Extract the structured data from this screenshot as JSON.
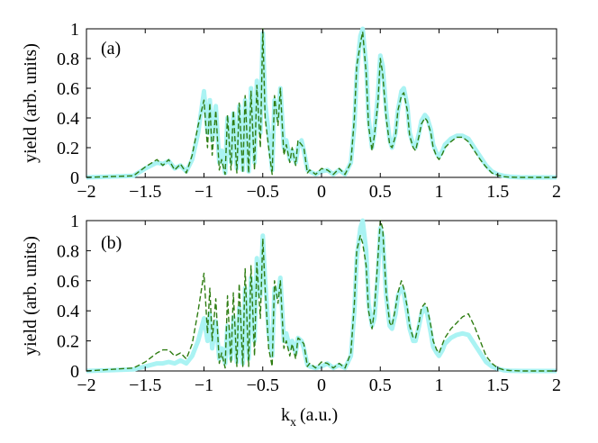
{
  "figure": {
    "xlabel": "k",
    "xlabel_sub": "x",
    "xlabel_units": "(a.u.)"
  },
  "colors": {
    "thick_curve": "#aaf3f3",
    "dashed_curve": "#2f7d12",
    "axes": "#000000"
  },
  "chart_data": [
    {
      "type": "line",
      "panel_label": "(a)",
      "ylabel": "yield (arb. units)",
      "xlim": [
        -2,
        2
      ],
      "ylim": [
        0,
        1
      ],
      "xticks": [
        -2,
        -1.5,
        -1,
        -0.5,
        0,
        0.5,
        1,
        1.5,
        2
      ],
      "xtick_labels": [
        "−2",
        "−1.5",
        "−1",
        "−0.5",
        "0",
        "0.5",
        "1",
        "1.5",
        "2"
      ],
      "yticks": [
        0,
        0.2,
        0.4,
        0.6,
        0.8,
        1
      ],
      "ytick_labels": [
        "0",
        "0.2",
        "0.4",
        "0.6",
        "0.8",
        "1"
      ],
      "series": [
        {
          "name": "thick light curve",
          "style": "solid-thick",
          "x": [
            -2,
            -1.6,
            -1.5,
            -1.4,
            -1.35,
            -1.3,
            -1.25,
            -1.2,
            -1.15,
            -1.1,
            -1.05,
            -1.0,
            -0.97,
            -0.95,
            -0.93,
            -0.9,
            -0.87,
            -0.85,
            -0.82,
            -0.8,
            -0.77,
            -0.75,
            -0.72,
            -0.7,
            -0.67,
            -0.65,
            -0.62,
            -0.6,
            -0.57,
            -0.55,
            -0.52,
            -0.5,
            -0.48,
            -0.45,
            -0.42,
            -0.4,
            -0.37,
            -0.35,
            -0.32,
            -0.3,
            -0.27,
            -0.25,
            -0.22,
            -0.2,
            -0.17,
            -0.15,
            -0.12,
            -0.1,
            -0.05,
            0,
            0.05,
            0.1,
            0.15,
            0.2,
            0.25,
            0.28,
            0.3,
            0.33,
            0.35,
            0.38,
            0.4,
            0.43,
            0.45,
            0.48,
            0.5,
            0.52,
            0.55,
            0.58,
            0.6,
            0.63,
            0.65,
            0.68,
            0.7,
            0.73,
            0.75,
            0.78,
            0.8,
            0.83,
            0.85,
            0.88,
            0.9,
            0.93,
            0.95,
            0.98,
            1.0,
            1.03,
            1.05,
            1.1,
            1.15,
            1.2,
            1.25,
            1.3,
            1.35,
            1.4,
            1.45,
            1.5,
            1.55,
            1.6,
            1.7,
            1.8,
            2
          ],
          "y": [
            0,
            0.01,
            0.06,
            0.1,
            0.09,
            0.11,
            0.06,
            0.08,
            0.04,
            0.12,
            0.3,
            0.58,
            0.3,
            0.52,
            0.25,
            0.48,
            0.1,
            0.18,
            0.03,
            0.4,
            0.1,
            0.43,
            0.06,
            0.48,
            0.05,
            0.52,
            0.04,
            0.6,
            0.1,
            0.65,
            0.3,
            0.97,
            0.5,
            0.3,
            0.05,
            0.52,
            0.4,
            0.6,
            0.2,
            0.25,
            0.12,
            0.18,
            0.1,
            0.2,
            0.25,
            0.18,
            0.05,
            0.04,
            0.02,
            0.04,
            0.05,
            0.02,
            0.05,
            0.02,
            0.1,
            0.35,
            0.7,
            0.95,
            1.0,
            0.75,
            0.4,
            0.2,
            0.3,
            0.55,
            0.82,
            0.75,
            0.45,
            0.25,
            0.2,
            0.3,
            0.45,
            0.58,
            0.6,
            0.48,
            0.3,
            0.22,
            0.2,
            0.3,
            0.38,
            0.42,
            0.4,
            0.32,
            0.22,
            0.16,
            0.14,
            0.18,
            0.22,
            0.26,
            0.28,
            0.28,
            0.26,
            0.2,
            0.14,
            0.08,
            0.04,
            0.02,
            0.01,
            0.005,
            0,
            0,
            0
          ]
        },
        {
          "name": "dashed curve",
          "style": "dashed",
          "x": [
            -2,
            -1.6,
            -1.5,
            -1.4,
            -1.35,
            -1.3,
            -1.25,
            -1.2,
            -1.15,
            -1.1,
            -1.05,
            -1.0,
            -0.97,
            -0.95,
            -0.93,
            -0.9,
            -0.87,
            -0.85,
            -0.82,
            -0.8,
            -0.77,
            -0.75,
            -0.72,
            -0.7,
            -0.67,
            -0.65,
            -0.62,
            -0.6,
            -0.57,
            -0.55,
            -0.52,
            -0.5,
            -0.48,
            -0.45,
            -0.42,
            -0.4,
            -0.37,
            -0.35,
            -0.32,
            -0.3,
            -0.27,
            -0.25,
            -0.22,
            -0.2,
            -0.17,
            -0.15,
            -0.12,
            -0.1,
            -0.05,
            0,
            0.05,
            0.1,
            0.15,
            0.2,
            0.25,
            0.28,
            0.3,
            0.33,
            0.35,
            0.38,
            0.4,
            0.43,
            0.45,
            0.48,
            0.5,
            0.52,
            0.55,
            0.58,
            0.6,
            0.63,
            0.65,
            0.68,
            0.7,
            0.73,
            0.75,
            0.78,
            0.8,
            0.83,
            0.85,
            0.88,
            0.9,
            0.93,
            0.95,
            0.98,
            1.0,
            1.03,
            1.05,
            1.1,
            1.15,
            1.2,
            1.25,
            1.3,
            1.35,
            1.4,
            1.45,
            1.5,
            1.55,
            1.6,
            1.7,
            1.8,
            2
          ],
          "y": [
            0,
            0.01,
            0.07,
            0.12,
            0.08,
            0.12,
            0.05,
            0.09,
            0.03,
            0.15,
            0.35,
            0.52,
            0.2,
            0.5,
            0.15,
            0.45,
            0.05,
            0.12,
            0.02,
            0.42,
            0.05,
            0.45,
            0.03,
            0.5,
            0.03,
            0.55,
            0.03,
            0.58,
            0.05,
            0.62,
            0.2,
            1.0,
            0.4,
            0.2,
            0.02,
            0.55,
            0.35,
            0.6,
            0.15,
            0.22,
            0.1,
            0.2,
            0.08,
            0.25,
            0.22,
            0.2,
            0.03,
            0.05,
            0.02,
            0.06,
            0.05,
            0.02,
            0.06,
            0.02,
            0.1,
            0.4,
            0.75,
            0.9,
            0.98,
            0.7,
            0.35,
            0.18,
            0.28,
            0.5,
            0.8,
            0.7,
            0.4,
            0.22,
            0.2,
            0.28,
            0.45,
            0.55,
            0.57,
            0.45,
            0.28,
            0.2,
            0.18,
            0.28,
            0.36,
            0.4,
            0.38,
            0.3,
            0.2,
            0.14,
            0.12,
            0.16,
            0.2,
            0.24,
            0.27,
            0.27,
            0.24,
            0.18,
            0.12,
            0.07,
            0.03,
            0.015,
            0.005,
            0.002,
            0,
            0,
            0
          ]
        }
      ]
    },
    {
      "type": "line",
      "panel_label": "(b)",
      "ylabel": "yield (arb. units)",
      "xlim": [
        -2,
        2
      ],
      "ylim": [
        0,
        1
      ],
      "xticks": [
        -2,
        -1.5,
        -1,
        -0.5,
        0,
        0.5,
        1,
        1.5,
        2
      ],
      "xtick_labels": [
        "−2",
        "−1.5",
        "−1",
        "−0.5",
        "0",
        "0.5",
        "1",
        "1.5",
        "2"
      ],
      "yticks": [
        0,
        0.2,
        0.4,
        0.6,
        0.8,
        1
      ],
      "ytick_labels": [
        "0",
        "0.2",
        "0.4",
        "0.6",
        "0.8",
        "1"
      ],
      "series": [
        {
          "name": "thick light curve",
          "style": "solid-thick",
          "x": [
            -2,
            -1.6,
            -1.5,
            -1.4,
            -1.35,
            -1.3,
            -1.25,
            -1.2,
            -1.15,
            -1.1,
            -1.05,
            -1.0,
            -0.97,
            -0.95,
            -0.93,
            -0.9,
            -0.87,
            -0.85,
            -0.82,
            -0.8,
            -0.77,
            -0.75,
            -0.72,
            -0.7,
            -0.67,
            -0.65,
            -0.62,
            -0.6,
            -0.57,
            -0.55,
            -0.52,
            -0.5,
            -0.48,
            -0.45,
            -0.42,
            -0.4,
            -0.37,
            -0.35,
            -0.32,
            -0.3,
            -0.27,
            -0.25,
            -0.22,
            -0.2,
            -0.17,
            -0.15,
            -0.12,
            -0.1,
            -0.05,
            0,
            0.05,
            0.1,
            0.15,
            0.2,
            0.25,
            0.28,
            0.3,
            0.33,
            0.35,
            0.38,
            0.4,
            0.43,
            0.45,
            0.48,
            0.5,
            0.52,
            0.55,
            0.58,
            0.6,
            0.63,
            0.65,
            0.68,
            0.7,
            0.73,
            0.75,
            0.78,
            0.8,
            0.83,
            0.85,
            0.88,
            0.9,
            0.93,
            0.95,
            0.98,
            1.0,
            1.03,
            1.05,
            1.1,
            1.15,
            1.2,
            1.25,
            1.3,
            1.35,
            1.4,
            1.45,
            1.5,
            1.55,
            1.6,
            1.7,
            1.8,
            2
          ],
          "y": [
            0,
            0.01,
            0.03,
            0.05,
            0.05,
            0.06,
            0.05,
            0.07,
            0.05,
            0.1,
            0.2,
            0.35,
            0.2,
            0.38,
            0.15,
            0.33,
            0.08,
            0.15,
            0.05,
            0.3,
            0.08,
            0.36,
            0.06,
            0.42,
            0.05,
            0.55,
            0.08,
            0.62,
            0.2,
            0.75,
            0.5,
            0.9,
            0.6,
            0.25,
            0.1,
            0.55,
            0.5,
            0.62,
            0.2,
            0.25,
            0.15,
            0.2,
            0.12,
            0.22,
            0.2,
            0.15,
            0.04,
            0.03,
            0.02,
            0.03,
            0.05,
            0.02,
            0.04,
            0.02,
            0.1,
            0.4,
            0.75,
            0.95,
            1.0,
            0.8,
            0.45,
            0.3,
            0.35,
            0.65,
            0.95,
            0.9,
            0.5,
            0.3,
            0.28,
            0.38,
            0.5,
            0.55,
            0.52,
            0.38,
            0.28,
            0.2,
            0.2,
            0.3,
            0.38,
            0.42,
            0.38,
            0.25,
            0.16,
            0.12,
            0.1,
            0.14,
            0.18,
            0.22,
            0.24,
            0.25,
            0.24,
            0.18,
            0.12,
            0.06,
            0.03,
            0.015,
            0.005,
            0.002,
            0,
            0,
            0
          ]
        },
        {
          "name": "dashed curve",
          "style": "dashed",
          "x": [
            -2,
            -1.6,
            -1.5,
            -1.4,
            -1.35,
            -1.3,
            -1.25,
            -1.2,
            -1.15,
            -1.1,
            -1.05,
            -1.0,
            -0.97,
            -0.95,
            -0.93,
            -0.9,
            -0.87,
            -0.85,
            -0.82,
            -0.8,
            -0.77,
            -0.75,
            -0.72,
            -0.7,
            -0.67,
            -0.65,
            -0.62,
            -0.6,
            -0.57,
            -0.55,
            -0.52,
            -0.5,
            -0.48,
            -0.45,
            -0.42,
            -0.4,
            -0.37,
            -0.35,
            -0.32,
            -0.3,
            -0.27,
            -0.25,
            -0.22,
            -0.2,
            -0.17,
            -0.15,
            -0.12,
            -0.1,
            -0.05,
            0,
            0.05,
            0.1,
            0.15,
            0.2,
            0.25,
            0.28,
            0.3,
            0.33,
            0.35,
            0.38,
            0.4,
            0.43,
            0.45,
            0.48,
            0.5,
            0.52,
            0.55,
            0.58,
            0.6,
            0.63,
            0.65,
            0.68,
            0.7,
            0.73,
            0.75,
            0.78,
            0.8,
            0.83,
            0.85,
            0.88,
            0.9,
            0.93,
            0.95,
            0.98,
            1.0,
            1.03,
            1.05,
            1.1,
            1.15,
            1.2,
            1.25,
            1.3,
            1.35,
            1.4,
            1.45,
            1.5,
            1.55,
            1.6,
            1.7,
            1.8,
            2
          ],
          "y": [
            0,
            0.02,
            0.06,
            0.12,
            0.14,
            0.14,
            0.1,
            0.12,
            0.08,
            0.18,
            0.4,
            0.65,
            0.25,
            0.55,
            0.2,
            0.48,
            0.05,
            0.12,
            0.02,
            0.5,
            0.05,
            0.52,
            0.03,
            0.58,
            0.03,
            0.68,
            0.03,
            0.7,
            0.1,
            0.72,
            0.35,
            0.88,
            0.55,
            0.15,
            0.03,
            0.6,
            0.45,
            0.6,
            0.15,
            0.2,
            0.1,
            0.18,
            0.08,
            0.22,
            0.2,
            0.18,
            0.03,
            0.05,
            0.02,
            0.06,
            0.05,
            0.02,
            0.05,
            0.02,
            0.12,
            0.45,
            0.8,
            0.9,
            0.85,
            0.7,
            0.4,
            0.28,
            0.4,
            0.75,
            1.0,
            0.95,
            0.52,
            0.32,
            0.3,
            0.42,
            0.52,
            0.6,
            0.55,
            0.42,
            0.3,
            0.22,
            0.22,
            0.32,
            0.42,
            0.45,
            0.42,
            0.3,
            0.2,
            0.14,
            0.12,
            0.18,
            0.22,
            0.28,
            0.32,
            0.36,
            0.38,
            0.3,
            0.2,
            0.1,
            0.05,
            0.02,
            0.008,
            0.003,
            0,
            0,
            0
          ]
        }
      ]
    }
  ]
}
